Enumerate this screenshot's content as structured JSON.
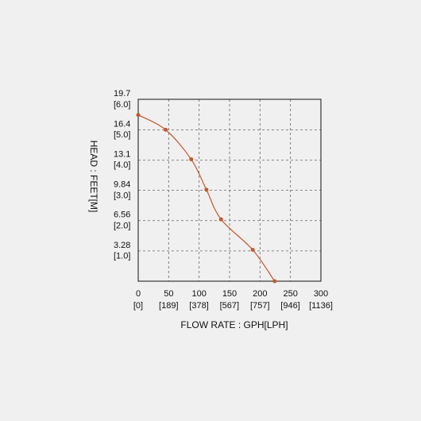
{
  "chart_data": {
    "type": "line",
    "x_label": "FLOW RATE : GPH[LPH]",
    "y_label": "HEAD : FEET[M]",
    "x": [
      0,
      45,
      87,
      112,
      136,
      188,
      224
    ],
    "series": [
      {
        "values": [
          18.0,
          16.4,
          13.2,
          9.9,
          6.7,
          3.4,
          0
        ],
        "color": "#c4582c"
      }
    ],
    "xlim": [
      0,
      300
    ],
    "xticks": [
      0,
      50,
      100,
      150,
      200,
      250,
      300
    ],
    "x2lim": [
      0,
      1136
    ],
    "x2ticks": [
      {
        "value": 0,
        "label": "[0]"
      },
      {
        "value": 189,
        "label": "[189]"
      },
      {
        "value": 378,
        "label": "[378]"
      },
      {
        "value": 567,
        "label": "[567]"
      },
      {
        "value": 757,
        "label": "[757]"
      },
      {
        "value": 946,
        "label": "[946]"
      },
      {
        "value": 1136,
        "label": "[1136]"
      }
    ],
    "ylim": [
      0,
      19.7
    ],
    "yticks": [
      3.28,
      6.56,
      9.84,
      13.1,
      16.4,
      19.7
    ],
    "y2lim": [
      0,
      6.0
    ],
    "y2ticks": [
      {
        "value": 1.0,
        "label": "[1.0]"
      },
      {
        "value": 2.0,
        "label": "[2.0]"
      },
      {
        "value": 3.0,
        "label": "[3.0]"
      },
      {
        "value": 4.0,
        "label": "[4.0]"
      },
      {
        "value": 5.0,
        "label": "[5.0]"
      },
      {
        "value": 6.0,
        "label": "[6.0]"
      }
    ],
    "grid": true
  }
}
